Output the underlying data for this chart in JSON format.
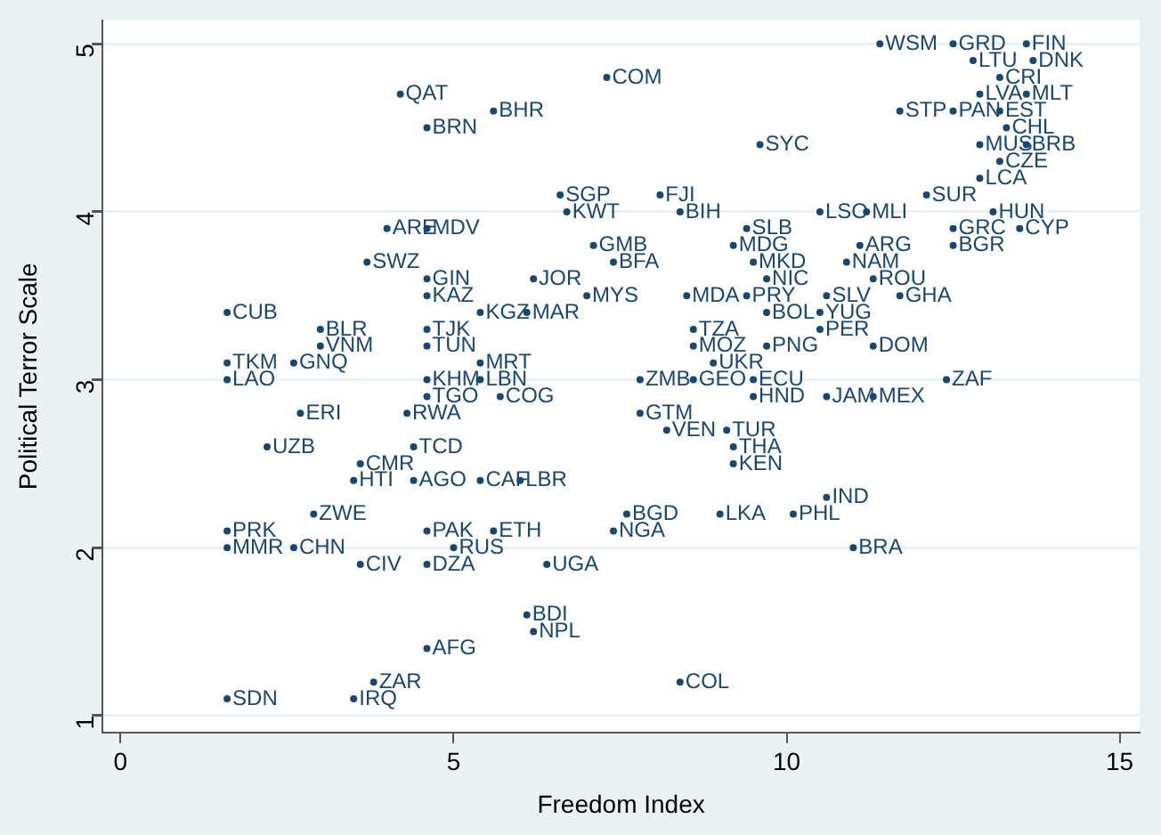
{
  "chart_data": {
    "type": "scatter",
    "xlabel": "Freedom Index",
    "ylabel": "Political Terror Scale",
    "xlim": [
      -0.27,
      15.3
    ],
    "ylim": [
      0.9,
      5.14
    ],
    "xticks": [
      0,
      5,
      10,
      15
    ],
    "yticks": [
      1,
      2,
      3,
      4,
      5
    ],
    "grid": "y",
    "marker": "circle",
    "series": [
      {
        "color": "#1a476f",
        "x": [
          11.4,
          12.5,
          13.6,
          12.8,
          13.7,
          13.2,
          12.9,
          13.6,
          11.7,
          12.5,
          13.2,
          13.3,
          12.9,
          13.6,
          13.2,
          12.9,
          12.1,
          13.1,
          13.5,
          12.5,
          12.5,
          10.5,
          11.2,
          11.1,
          10.9,
          9.5,
          9.7,
          11.3,
          11.7,
          10.6,
          10.5,
          10.5,
          11.3,
          9.7,
          9.7,
          12.4,
          9.5,
          9.5,
          10.6,
          11.3,
          9.1,
          9.2,
          9.2,
          8.2,
          7.8,
          7.8,
          8.6,
          8.9,
          8.6,
          8.6,
          8.5,
          9.4,
          9.2,
          9.4,
          8.4,
          8.1,
          9.6,
          7.3,
          5.6,
          4.6,
          4.2,
          6.6,
          6.7,
          7.1,
          7.4,
          4.0,
          4.6,
          3.7,
          4.6,
          4.6,
          6.2,
          7.0,
          5.4,
          6.1,
          4.6,
          4.6,
          5.4,
          4.6,
          5.4,
          4.6,
          5.7,
          4.3,
          4.4,
          3.6,
          3.5,
          4.4,
          5.4,
          6.0,
          4.6,
          5.6,
          5.0,
          4.6,
          6.4,
          3.6,
          2.9,
          1.6,
          1.6,
          2.6,
          7.4,
          7.6,
          9.0,
          10.1,
          10.6,
          11.0,
          6.1,
          6.2,
          4.6,
          8.4,
          3.8,
          3.5,
          1.6,
          2.2,
          2.7,
          1.6,
          1.6,
          2.6,
          3.0,
          3.0,
          1.6
        ],
        "values": [
          5.0,
          5.0,
          5.0,
          4.9,
          4.9,
          4.8,
          4.7,
          4.7,
          4.6,
          4.6,
          4.6,
          4.5,
          4.4,
          4.4,
          4.3,
          4.2,
          4.1,
          4.0,
          3.9,
          3.9,
          3.8,
          4.0,
          4.0,
          3.8,
          3.7,
          3.7,
          3.6,
          3.6,
          3.5,
          3.5,
          3.4,
          3.3,
          3.2,
          3.4,
          3.2,
          3.0,
          3.0,
          2.9,
          2.9,
          2.9,
          2.7,
          2.6,
          2.5,
          2.7,
          2.8,
          3.0,
          3.0,
          3.1,
          3.2,
          3.3,
          3.5,
          3.5,
          3.8,
          3.9,
          4.0,
          4.1,
          4.4,
          4.8,
          4.6,
          4.5,
          4.7,
          4.1,
          4.0,
          3.8,
          3.7,
          3.9,
          3.9,
          3.7,
          3.6,
          3.5,
          3.6,
          3.5,
          3.4,
          3.4,
          3.3,
          3.2,
          3.1,
          3.0,
          3.0,
          2.9,
          2.9,
          2.8,
          2.6,
          2.5,
          2.4,
          2.4,
          2.4,
          2.4,
          2.1,
          2.1,
          2.0,
          1.9,
          1.9,
          1.9,
          2.2,
          2.1,
          2.0,
          2.0,
          2.1,
          2.2,
          2.2,
          2.2,
          2.3,
          2.0,
          1.6,
          1.5,
          1.4,
          1.2,
          1.2,
          1.1,
          1.1,
          2.6,
          2.8,
          3.1,
          3.0,
          3.1,
          3.3,
          3.2,
          3.4
        ],
        "value_labels": [
          "WSM",
          "GRD",
          "FIN",
          "LTU",
          "DNK",
          "CRI",
          "LVA",
          "MLT",
          "STP",
          "PAN",
          "EST",
          "CHL",
          "MUS",
          "BRB",
          "CZE",
          "LCA",
          "SUR",
          "HUN",
          "CYP",
          "GRC",
          "BGR",
          "LSO",
          "MLI",
          "ARG",
          "NAM",
          "MKD",
          "NIC",
          "ROU",
          "GHA",
          "SLV",
          "YUG",
          "PER",
          "DOM",
          "BOL",
          "PNG",
          "ZAF",
          "ECU",
          "HND",
          "JAM",
          "MEX",
          "TUR",
          "THA",
          "KEN",
          "VEN",
          "GTM",
          "ZMB",
          "GEO",
          "UKR",
          "MOZ",
          "TZA",
          "MDA",
          "PRY",
          "MDG",
          "SLB",
          "BIH",
          "FJI",
          "SYC",
          "COM",
          "BHR",
          "BRN",
          "QAT",
          "SGP",
          "KWT",
          "GMB",
          "BFA",
          "ARE",
          "MDV",
          "SWZ",
          "GIN",
          "KAZ",
          "JOR",
          "MYS",
          "KGZ",
          "MAR",
          "TJK",
          "TUN",
          "MRT",
          "KHM",
          "LBN",
          "TGO",
          "COG",
          "RWA",
          "TCD",
          "CMR",
          "HTI",
          "AGO",
          "CAF",
          "LBR",
          "PAK",
          "ETH",
          "RUS",
          "DZA",
          "UGA",
          "CIV",
          "ZWE",
          "PRK",
          "MMR",
          "CHN",
          "NGA",
          "BGD",
          "LKA",
          "PHL",
          "IND",
          "BRA",
          "BDI",
          "NPL",
          "AFG",
          "COL",
          "ZAR",
          "IRQ",
          "SDN",
          "UZB",
          "ERI",
          "TKM",
          "LAO",
          "GNQ",
          "BLR",
          "VNM",
          "CUB"
        ]
      }
    ]
  }
}
